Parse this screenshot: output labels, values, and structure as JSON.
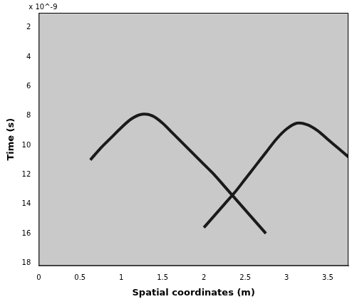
{
  "chart_data": {
    "type": "line",
    "x_label": "Spatial coordinates (m)",
    "y_label": "Time (s)",
    "annotations": [
      {
        "text": "x 10^-9"
      }
    ],
    "x": [
      0.625,
      0.75,
      0.875,
      1.0,
      1.125,
      1.25,
      1.375,
      1.5,
      1.625,
      1.75,
      1.875,
      2.0,
      2.125,
      2.25,
      2.375,
      2.5,
      2.625,
      2.75,
      2.875,
      3.0,
      3.125,
      3.25,
      3.375,
      3.5,
      3.625,
      3.75
    ],
    "series": [
      {
        "color": "#1a1a1a",
        "values": [
          11.0,
          10.2,
          9.5,
          8.8,
          8.2,
          7.9,
          8.0,
          8.5,
          9.2,
          9.9,
          10.6,
          11.3,
          12.0,
          12.8,
          13.6,
          14.4,
          15.2,
          16.0,
          null,
          null,
          null,
          null,
          null,
          null,
          null,
          null
        ]
      },
      {
        "color": "#1a1a1a",
        "values": [
          null,
          null,
          null,
          null,
          null,
          null,
          null,
          null,
          null,
          null,
          null,
          15.6,
          14.8,
          14.0,
          13.2,
          12.3,
          11.4,
          10.5,
          9.6,
          8.9,
          8.5,
          8.6,
          9.0,
          9.6,
          10.2,
          10.8
        ]
      }
    ],
    "xlim": [
      0,
      3.75
    ],
    "xticks": [
      0,
      0.5,
      1,
      1.5,
      2,
      2.5,
      3,
      3.5
    ],
    "ylim": [
      1,
      18.2
    ],
    "yticks": [
      2,
      4,
      6,
      8,
      10,
      12,
      14,
      16,
      18
    ],
    "grid": false
  }
}
